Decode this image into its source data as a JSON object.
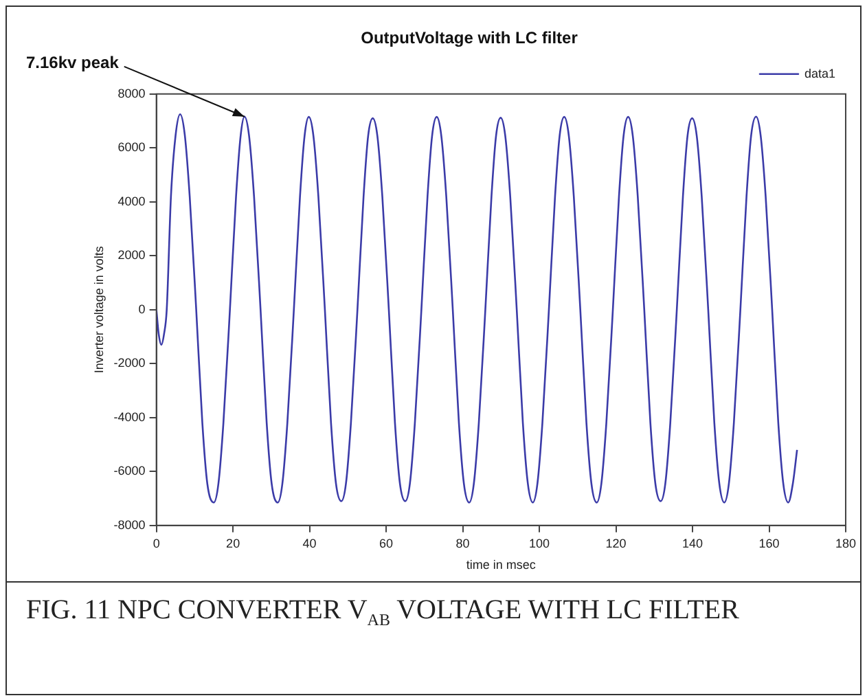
{
  "chart_data": {
    "type": "line",
    "title": "OutputVoltage with LC filter",
    "xlabel": "time in msec",
    "ylabel": "Inverter voltage in volts",
    "xlim": [
      0,
      180
    ],
    "xticks": [
      0,
      20,
      40,
      60,
      80,
      100,
      120,
      140,
      160,
      180
    ],
    "ylim": [
      -8000,
      8000
    ],
    "yticks": [
      -8000,
      -6000,
      -4000,
      -2000,
      0,
      2000,
      4000,
      6000,
      8000
    ],
    "grid": false,
    "legend": "top right",
    "marker": "none",
    "line_style": "solid",
    "annotations": [
      {
        "text": "7.16kv peak",
        "x": 23,
        "y": 7160
      },
      "FIG. 11  NPC CONVERTER V$_{AB}$ VOLTAGE WITH LC FILTER"
    ],
    "series": [
      {
        "name": "data1",
        "color": "#3b3ba8",
        "x": [
          0,
          0.6,
          1.3,
          2,
          2.7,
          3.8,
          5,
          6.2,
          7.4,
          8.7,
          10.4,
          12,
          13.3,
          15,
          16.2,
          17.5,
          19.2,
          20.8,
          22,
          23,
          24.2,
          25.5,
          27.2,
          28.8,
          30.1,
          31.7,
          32.9,
          34.2,
          35.9,
          37.5,
          38.7,
          39.8,
          41,
          42.3,
          44,
          45.6,
          46.9,
          48.3,
          49.5,
          50.8,
          52.5,
          54.1,
          55.3,
          56.5,
          57.7,
          59,
          60.7,
          62.3,
          63.6,
          65,
          66.2,
          67.5,
          69.2,
          70.8,
          72,
          73.2,
          74.4,
          75.7,
          77.4,
          79,
          80.3,
          81.7,
          82.9,
          84.2,
          85.9,
          87.5,
          88.7,
          89.9,
          91.1,
          92.4,
          94.1,
          95.7,
          97,
          98.3,
          99.5,
          100.8,
          102.5,
          104.1,
          105.3,
          106.5,
          107.7,
          109,
          110.7,
          112.3,
          113.6,
          115,
          116.2,
          117.5,
          119.2,
          120.8,
          122,
          123.2,
          124.4,
          125.7,
          127.4,
          129,
          130.3,
          131.7,
          132.9,
          134.2,
          135.9,
          137.5,
          138.7,
          139.9,
          141.1,
          142.4,
          144.1,
          145.7,
          147,
          148.3,
          149.5,
          150.8,
          152.5,
          154.1,
          155.3,
          156.6,
          157.8,
          159.1,
          160.8,
          162.4,
          163.7,
          165,
          166.2,
          167.3
        ],
        "values": [
          0,
          -900,
          -1300,
          -900,
          0,
          4200,
          6450,
          7250,
          6500,
          4200,
          0,
          -4200,
          -6450,
          -7150,
          -6450,
          -4200,
          0,
          4200,
          6450,
          7160,
          6450,
          4200,
          0,
          -4200,
          -6450,
          -7150,
          -6450,
          -4200,
          0,
          4200,
          6450,
          7150,
          6450,
          4200,
          0,
          -4200,
          -6450,
          -7100,
          -6450,
          -4200,
          0,
          4200,
          6450,
          7100,
          6450,
          4200,
          0,
          -4200,
          -6450,
          -7100,
          -6450,
          -4200,
          0,
          4200,
          6450,
          7150,
          6450,
          4200,
          0,
          -4200,
          -6450,
          -7150,
          -6450,
          -4200,
          0,
          4200,
          6450,
          7120,
          6450,
          4200,
          0,
          -4200,
          -6450,
          -7150,
          -6450,
          -4200,
          0,
          4200,
          6450,
          7150,
          6450,
          4200,
          0,
          -4200,
          -6450,
          -7150,
          -6450,
          -4200,
          0,
          4200,
          6450,
          7150,
          6450,
          4200,
          0,
          -4200,
          -6450,
          -7100,
          -6450,
          -4200,
          0,
          4200,
          6450,
          7100,
          6450,
          4200,
          0,
          -4200,
          -6450,
          -7150,
          -6450,
          -4200,
          0,
          4200,
          6450,
          7160,
          6450,
          4200,
          0,
          -4200,
          -6450,
          -7150,
          -6450,
          -5200
        ]
      }
    ]
  }
}
